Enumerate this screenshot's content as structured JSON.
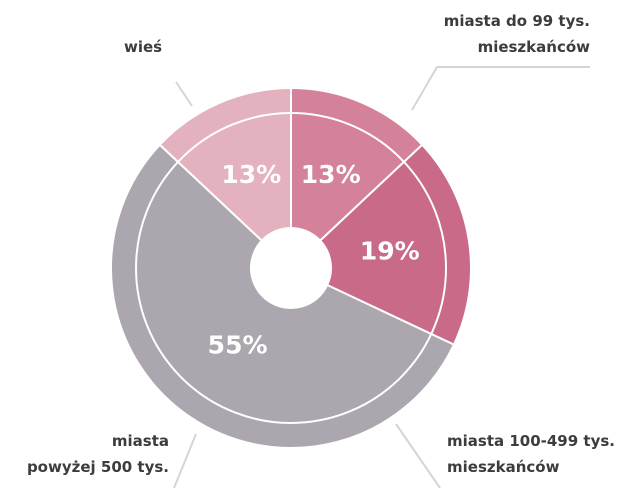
{
  "chart_data": {
    "type": "pie",
    "categories": [
      "miasta do 99 tys.\nmieszkańców",
      "miasta 100-499 tys.\nmieszkańców",
      "miasta\npowyżej 500 tys.",
      "wieś"
    ],
    "values": [
      13,
      19,
      55,
      13
    ],
    "value_labels": [
      "13%",
      "19%",
      "55%",
      "13%"
    ],
    "colors": [
      "#d4819a",
      "#c86a88",
      "#aca7ae",
      "#e4b2bf"
    ]
  }
}
